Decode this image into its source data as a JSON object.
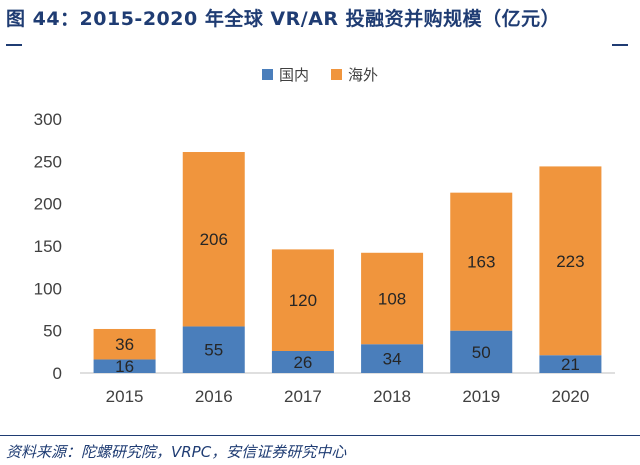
{
  "title": "图 44：2015-2020 年全球 VR/AR 投融资并购规模（亿元）",
  "source": "资料来源：陀螺研究院，VRPC，安信证券研究中心",
  "chart_data": {
    "type": "bar",
    "stacked": true,
    "categories": [
      "2015",
      "2016",
      "2017",
      "2018",
      "2019",
      "2020"
    ],
    "series": [
      {
        "name": "国内",
        "color": "#4a7ebb",
        "values": [
          16,
          55,
          26,
          34,
          50,
          21
        ]
      },
      {
        "name": "海外",
        "color": "#f0953d",
        "values": [
          36,
          206,
          120,
          108,
          163,
          223
        ]
      }
    ],
    "y_ticks": [
      0,
      50,
      100,
      150,
      200,
      250,
      300
    ],
    "ylim": [
      0,
      300
    ],
    "legend_position": "top-center",
    "grid": false
  }
}
